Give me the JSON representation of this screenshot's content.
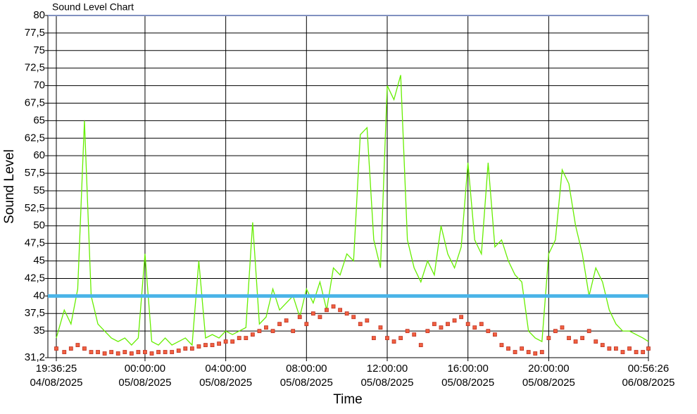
{
  "chart_data": {
    "type": "line",
    "title": "Sound Level Chart",
    "x_label": "Time",
    "y_label": "Sound Level",
    "x": [
      "04/08/2025 19:36:25",
      "04/08/2025 20:00:00",
      "04/08/2025 20:20:00",
      "04/08/2025 20:40:00",
      "04/08/2025 21:00:00",
      "04/08/2025 21:20:00",
      "04/08/2025 21:40:00",
      "04/08/2025 22:00:00",
      "04/08/2025 22:20:00",
      "04/08/2025 22:40:00",
      "04/08/2025 23:00:00",
      "04/08/2025 23:20:00",
      "04/08/2025 23:40:00",
      "05/08/2025 00:00:00",
      "05/08/2025 00:20:00",
      "05/08/2025 00:40:00",
      "05/08/2025 01:00:00",
      "05/08/2025 01:20:00",
      "05/08/2025 01:40:00",
      "05/08/2025 02:00:00",
      "05/08/2025 02:20:00",
      "05/08/2025 02:40:00",
      "05/08/2025 03:00:00",
      "05/08/2025 03:20:00",
      "05/08/2025 03:40:00",
      "05/08/2025 04:00:00",
      "05/08/2025 04:20:00",
      "05/08/2025 04:40:00",
      "05/08/2025 05:00:00",
      "05/08/2025 05:20:00",
      "05/08/2025 05:40:00",
      "05/08/2025 06:00:00",
      "05/08/2025 06:20:00",
      "05/08/2025 06:40:00",
      "05/08/2025 07:00:00",
      "05/08/2025 07:20:00",
      "05/08/2025 07:40:00",
      "05/08/2025 08:00:00",
      "05/08/2025 08:20:00",
      "05/08/2025 08:40:00",
      "05/08/2025 09:00:00",
      "05/08/2025 09:20:00",
      "05/08/2025 09:40:00",
      "05/08/2025 10:00:00",
      "05/08/2025 10:20:00",
      "05/08/2025 10:40:00",
      "05/08/2025 11:00:00",
      "05/08/2025 11:20:00",
      "05/08/2025 11:40:00",
      "05/08/2025 12:00:00",
      "05/08/2025 12:20:00",
      "05/08/2025 12:40:00",
      "05/08/2025 13:00:00",
      "05/08/2025 13:20:00",
      "05/08/2025 13:40:00",
      "05/08/2025 14:00:00",
      "05/08/2025 14:20:00",
      "05/08/2025 14:40:00",
      "05/08/2025 15:00:00",
      "05/08/2025 15:20:00",
      "05/08/2025 15:40:00",
      "05/08/2025 16:00:00",
      "05/08/2025 16:20:00",
      "05/08/2025 16:40:00",
      "05/08/2025 17:00:00",
      "05/08/2025 17:20:00",
      "05/08/2025 17:40:00",
      "05/08/2025 18:00:00",
      "05/08/2025 18:20:00",
      "05/08/2025 18:40:00",
      "05/08/2025 19:00:00",
      "05/08/2025 19:20:00",
      "05/08/2025 19:40:00",
      "05/08/2025 20:00:00",
      "05/08/2025 20:20:00",
      "05/08/2025 20:40:00",
      "05/08/2025 21:00:00",
      "05/08/2025 21:20:00",
      "05/08/2025 21:40:00",
      "05/08/2025 22:00:00",
      "05/08/2025 22:20:00",
      "05/08/2025 22:40:00",
      "05/08/2025 23:00:00",
      "05/08/2025 23:20:00",
      "05/08/2025 23:40:00",
      "06/08/2025 00:00:00",
      "06/08/2025 00:20:00",
      "06/08/2025 00:40:00",
      "06/08/2025 00:56:26"
    ],
    "series": [
      {
        "color": "#66ee00",
        "values": [
          34,
          38,
          36,
          41,
          65,
          40,
          36,
          35,
          34,
          33.5,
          34,
          33,
          34,
          46,
          33.5,
          33,
          34,
          33,
          33.5,
          34,
          33,
          45,
          34,
          34.5,
          34,
          35,
          34.5,
          35,
          35.5,
          50.5,
          36,
          37,
          41,
          38,
          39,
          40,
          37,
          41,
          39,
          42,
          38,
          44,
          43,
          46,
          45,
          63,
          64,
          48,
          44,
          70,
          68,
          71.5,
          48,
          44,
          42,
          45,
          43,
          50,
          46,
          44,
          47,
          59,
          48,
          46,
          59,
          47,
          48,
          45,
          43,
          42,
          35,
          34,
          33.5,
          46,
          48,
          58,
          56,
          50,
          46,
          40,
          44,
          42,
          38,
          36,
          35,
          35,
          34.5,
          34,
          33.5
        ]
      },
      {
        "color": "#f06040",
        "marker": "square",
        "values": [
          32.5,
          32,
          32.5,
          33,
          32.5,
          32,
          32,
          31.8,
          32,
          31.8,
          32,
          31.8,
          32,
          32,
          31.8,
          32,
          32,
          32,
          32.2,
          32.5,
          32.5,
          32.8,
          33,
          33,
          33.2,
          33.5,
          33.5,
          34,
          34,
          34.5,
          35,
          35.5,
          35,
          36,
          36.5,
          35,
          37,
          36,
          37.5,
          37,
          38,
          38.5,
          38,
          37.5,
          37,
          36,
          36.5,
          34,
          35.5,
          34,
          33.5,
          34,
          35,
          34.5,
          33,
          35,
          36,
          35.5,
          36,
          36.5,
          37,
          36,
          35.5,
          36,
          35,
          34.5,
          33,
          32.5,
          32,
          32.5,
          32,
          31.8,
          32,
          34,
          35,
          35.5,
          34,
          33.5,
          34,
          35,
          33.5,
          33,
          32.5,
          32.5,
          32,
          32.5,
          32,
          32,
          32.5
        ]
      }
    ],
    "threshold": 40,
    "threshold_color": "#4ab4e8",
    "xlim": [
      "04/08/2025 19:36:25",
      "06/08/2025 00:56:26"
    ],
    "xticks": [
      {
        "value": "04/08/2025 19:36:25",
        "label": [
          "19:36:25",
          "04/08/2025"
        ]
      },
      {
        "value": "05/08/2025 00:00:00",
        "label": [
          "00:00:00",
          "05/08/2025"
        ]
      },
      {
        "value": "05/08/2025 04:00:00",
        "label": [
          "04:00:00",
          "05/08/2025"
        ]
      },
      {
        "value": "05/08/2025 08:00:00",
        "label": [
          "08:00:00",
          "05/08/2025"
        ]
      },
      {
        "value": "05/08/2025 12:00:00",
        "label": [
          "12:00:00",
          "05/08/2025"
        ]
      },
      {
        "value": "05/08/2025 16:00:00",
        "label": [
          "16:00:00",
          "05/08/2025"
        ]
      },
      {
        "value": "05/08/2025 20:00:00",
        "label": [
          "20:00:00",
          "05/08/2025"
        ]
      },
      {
        "value": "06/08/2025 00:56:26",
        "label": [
          "00:56:26",
          "06/08/2025"
        ]
      }
    ],
    "ylim": [
      31.2,
      80
    ],
    "yticks": [
      {
        "value": 31.2,
        "label": "31,2"
      },
      35,
      {
        "value": 37.5,
        "label": "37,5"
      },
      40,
      {
        "value": 42.5,
        "label": "42,5"
      },
      45,
      {
        "value": 47.5,
        "label": "47,5"
      },
      50,
      {
        "value": 52.5,
        "label": "52,5"
      },
      55,
      {
        "value": 57.5,
        "label": "57,5"
      },
      60,
      {
        "value": 62.5,
        "label": "62,5"
      },
      65,
      {
        "value": 67.5,
        "label": "67,5"
      },
      70,
      {
        "value": 72.5,
        "label": "72,5"
      },
      75,
      {
        "value": 77.5,
        "label": "77,5"
      },
      80
    ],
    "grid": true
  }
}
